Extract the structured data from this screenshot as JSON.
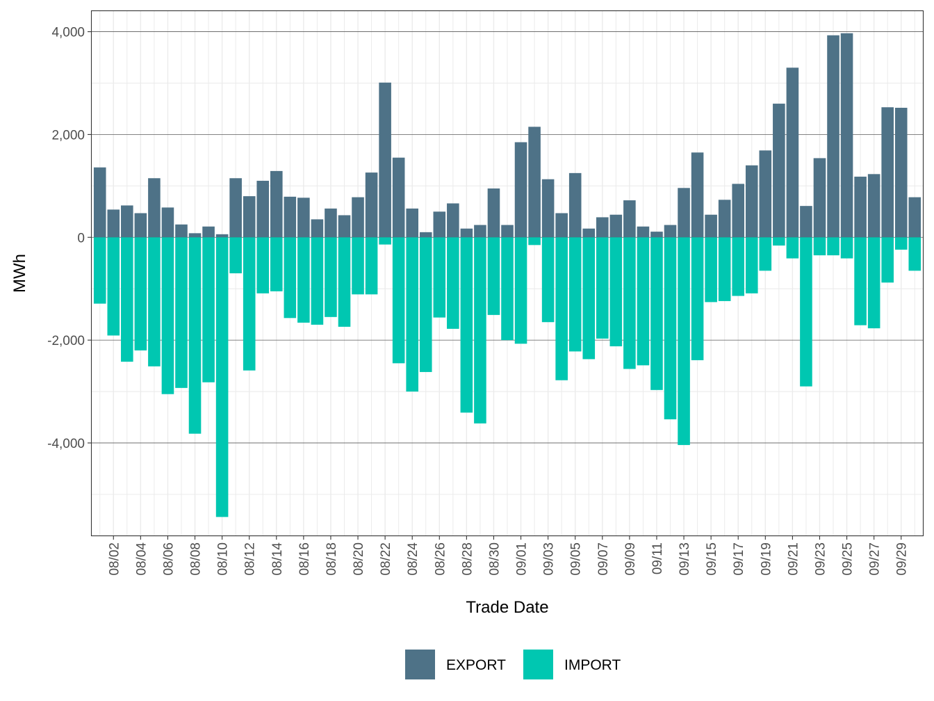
{
  "chart_data": {
    "type": "bar",
    "stacked": "diverging",
    "xlabel": "Trade Date",
    "ylabel": "MWh",
    "ylim": [
      -5800,
      4400
    ],
    "y_ticks": [
      4000,
      2000,
      0,
      -2000,
      -4000
    ],
    "y_tick_labels": [
      "4,000",
      "2,000",
      "0",
      "-2,000",
      "-4,000"
    ],
    "x_tick_labels": [
      "08/02",
      "08/04",
      "08/06",
      "08/08",
      "08/10",
      "08/12",
      "08/14",
      "08/16",
      "08/18",
      "08/20",
      "08/22",
      "08/24",
      "08/26",
      "08/28",
      "08/30",
      "09/01",
      "09/03",
      "09/05",
      "09/07",
      "09/09",
      "09/11",
      "09/13",
      "09/15",
      "09/17",
      "09/19",
      "09/21",
      "09/23",
      "09/25",
      "09/27",
      "09/29"
    ],
    "categories": [
      "08/01",
      "08/02",
      "08/03",
      "08/04",
      "08/05",
      "08/06",
      "08/07",
      "08/08",
      "08/09",
      "08/10",
      "08/11",
      "08/12",
      "08/13",
      "08/14",
      "08/15",
      "08/16",
      "08/17",
      "08/18",
      "08/19",
      "08/20",
      "08/21",
      "08/22",
      "08/23",
      "08/24",
      "08/25",
      "08/26",
      "08/27",
      "08/28",
      "08/29",
      "08/30",
      "08/31",
      "09/01",
      "09/02",
      "09/03",
      "09/04",
      "09/05",
      "09/06",
      "09/07",
      "09/08",
      "09/09",
      "09/10",
      "09/11",
      "09/12",
      "09/13",
      "09/14",
      "09/15",
      "09/16",
      "09/17",
      "09/18",
      "09/19",
      "09/20",
      "09/21",
      "09/22",
      "09/23",
      "09/24",
      "09/25",
      "09/26",
      "09/27",
      "09/28",
      "09/29",
      "09/30"
    ],
    "series": [
      {
        "name": "EXPORT",
        "color": "#4e7287",
        "values": [
          1360,
          540,
          620,
          470,
          1150,
          580,
          250,
          80,
          210,
          60,
          1150,
          800,
          1100,
          1290,
          790,
          770,
          350,
          560,
          430,
          780,
          1260,
          3010,
          1550,
          560,
          100,
          500,
          660,
          170,
          240,
          950,
          240,
          1850,
          2150,
          1130,
          470,
          1250,
          170,
          390,
          440,
          720,
          210,
          110,
          240,
          960,
          1650,
          440,
          730,
          1040,
          1400,
          1690,
          2600,
          3300,
          610,
          1540,
          3930,
          3970,
          1180,
          1230,
          2530,
          2520,
          780
        ]
      },
      {
        "name": "IMPORT",
        "color": "#00c7b1",
        "values": [
          -1290,
          -1910,
          -2420,
          -2200,
          -2510,
          -3050,
          -2930,
          -3820,
          -2820,
          -5440,
          -700,
          -2590,
          -1090,
          -1050,
          -1570,
          -1660,
          -1700,
          -1550,
          -1740,
          -1110,
          -1110,
          -140,
          -2450,
          -3000,
          -2620,
          -1560,
          -1780,
          -3410,
          -3620,
          -1510,
          -2000,
          -2070,
          -150,
          -1650,
          -2780,
          -2220,
          -2370,
          -1970,
          -2120,
          -2560,
          -2490,
          -2970,
          -3540,
          -4040,
          -2390,
          -1260,
          -1240,
          -1140,
          -1090,
          -650,
          -160,
          -410,
          -2900,
          -350,
          -350,
          -410,
          -1710,
          -1770,
          -880,
          -240,
          -650
        ]
      }
    ],
    "legend": [
      "EXPORT",
      "IMPORT"
    ],
    "legend_position": "bottom",
    "grid": true
  }
}
